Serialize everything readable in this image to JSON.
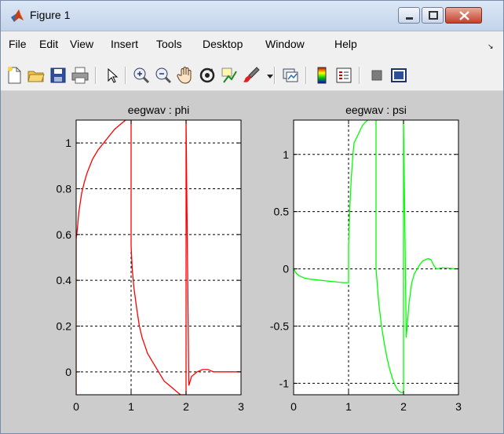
{
  "window": {
    "title": "Figure 1"
  },
  "menu": [
    "File",
    "Edit",
    "View",
    "Insert",
    "Tools",
    "Desktop",
    "Window",
    "Help"
  ],
  "toolbar": [
    "new-figure-icon",
    "open-file-icon",
    "save-icon",
    "print-icon",
    "pointer-icon",
    "zoom-in-icon",
    "zoom-out-icon",
    "pan-hand-icon",
    "rotate-3d-icon",
    "data-cursor-icon",
    "brush-icon",
    "dropdown-arrow-icon",
    "link-plot-icon",
    "colorbar-icon",
    "legend-icon",
    "hide-plot-tools-icon",
    "show-plot-tools-icon"
  ],
  "chart_data": [
    {
      "type": "line",
      "title": "eegwav : phi",
      "xlim": [
        0,
        3
      ],
      "ylim": [
        -0.1,
        1.1
      ],
      "xticks": [
        "0",
        "1",
        "2",
        "3"
      ],
      "yticks": [
        "0",
        "0.2",
        "0.4",
        "0.6",
        "0.8",
        "1"
      ],
      "grid": true,
      "color": "#ff0000",
      "x": [
        0,
        0,
        0.02,
        0.05,
        0.1,
        0.15,
        0.2,
        0.25,
        0.3,
        0.4,
        0.5,
        0.6,
        0.7,
        0.8,
        0.9,
        0.98,
        1.0,
        1.0,
        1.02,
        1.05,
        1.1,
        1.15,
        1.2,
        1.3,
        1.4,
        1.5,
        1.6,
        1.7,
        1.8,
        1.9,
        1.95,
        1.98,
        2.0,
        2.0,
        2.05,
        2.1,
        2.2,
        2.3,
        2.4,
        2.5,
        2.6,
        2.7,
        3.0
      ],
      "y": [
        -0.1,
        0.58,
        0.62,
        0.7,
        0.78,
        0.83,
        0.87,
        0.9,
        0.93,
        0.97,
        1.0,
        1.03,
        1.06,
        1.08,
        1.1,
        1.1,
        1.1,
        0.55,
        0.45,
        0.37,
        0.28,
        0.2,
        0.15,
        0.08,
        0.04,
        0.0,
        -0.04,
        -0.06,
        -0.08,
        -0.1,
        -0.1,
        -0.1,
        -0.1,
        1.1,
        -0.06,
        -0.02,
        0.0,
        0.01,
        0.01,
        0.0,
        0.0,
        0.0,
        0.0
      ]
    },
    {
      "type": "line",
      "title": "eegwav : psi",
      "xlim": [
        0,
        3
      ],
      "ylim": [
        -1.1,
        1.3
      ],
      "xticks": [
        "0",
        "1",
        "2",
        "3"
      ],
      "yticks": [
        "-1",
        "-0.5",
        "0",
        "0.5",
        "1"
      ],
      "grid": true,
      "color": "#00ff00",
      "x": [
        0,
        0.05,
        0.1,
        0.2,
        0.3,
        0.5,
        0.7,
        0.9,
        1.0,
        1.0,
        1.02,
        1.05,
        1.08,
        1.1,
        1.15,
        1.2,
        1.25,
        1.3,
        1.35,
        1.4,
        1.45,
        1.5,
        1.5,
        1.55,
        1.6,
        1.65,
        1.7,
        1.75,
        1.8,
        1.85,
        1.9,
        1.95,
        2.0,
        2.0,
        2.05,
        2.1,
        2.15,
        2.2,
        2.25,
        2.3,
        2.35,
        2.4,
        2.45,
        2.5,
        2.55,
        2.6,
        2.7,
        3.0
      ],
      "y": [
        0,
        -0.04,
        -0.06,
        -0.08,
        -0.09,
        -0.1,
        -0.11,
        -0.12,
        -0.12,
        0.2,
        0.5,
        0.8,
        1.0,
        1.1,
        1.15,
        1.2,
        1.25,
        1.28,
        1.3,
        1.32,
        1.33,
        1.3,
        0.0,
        -0.3,
        -0.5,
        -0.65,
        -0.78,
        -0.88,
        -0.96,
        -1.02,
        -1.06,
        -1.08,
        -1.08,
        1.3,
        -0.6,
        -0.3,
        -0.12,
        -0.04,
        0.0,
        0.04,
        0.07,
        0.08,
        0.09,
        0.08,
        0.03,
        0.0,
        0.01,
        0.0
      ]
    }
  ]
}
